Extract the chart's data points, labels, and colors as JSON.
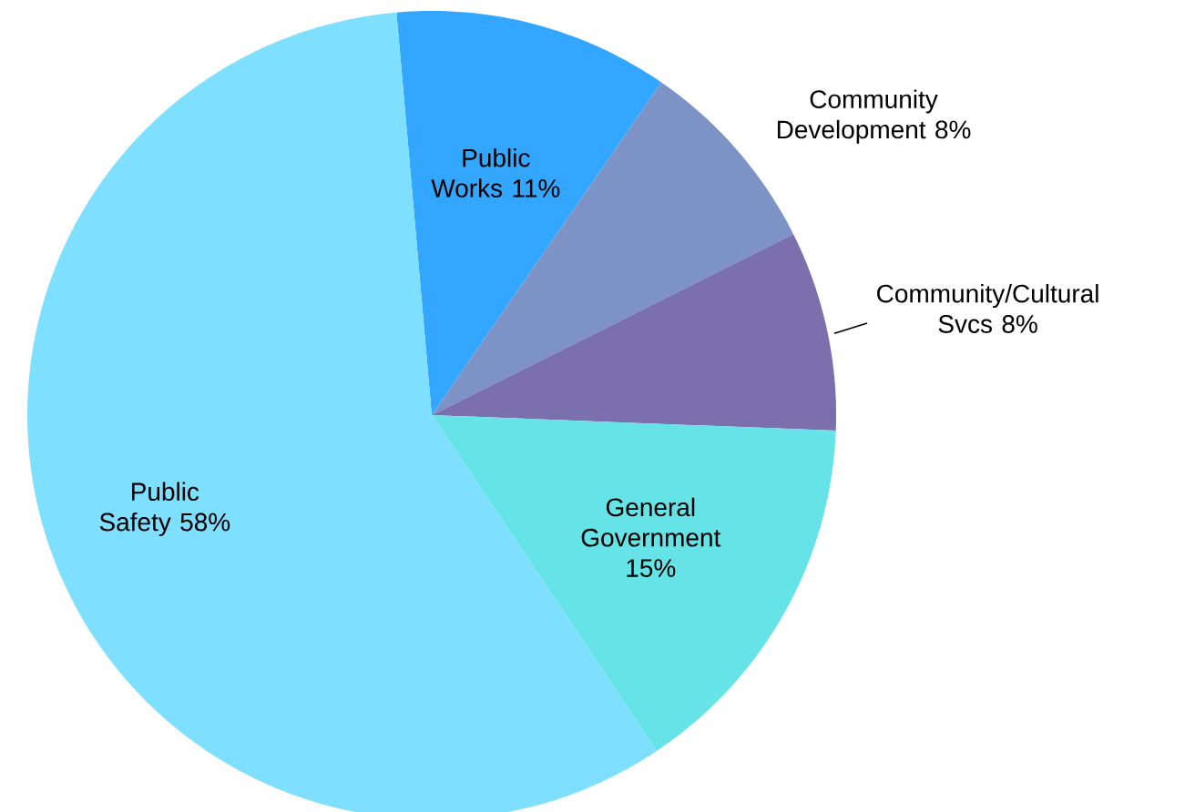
{
  "chart_data": {
    "type": "pie",
    "categories": [
      "Public Works",
      "Community Development",
      "Community/Cultural Svcs",
      "General Government",
      "Public Safety"
    ],
    "values": [
      11,
      8,
      8,
      15,
      58
    ],
    "value_labels": [
      "11%",
      "8%",
      "8%",
      "15%",
      "58%"
    ],
    "colors": [
      "#33a6ff",
      "#7d93c6",
      "#7b70ad",
      "#66e3e6",
      "#7fdfff"
    ]
  }
}
